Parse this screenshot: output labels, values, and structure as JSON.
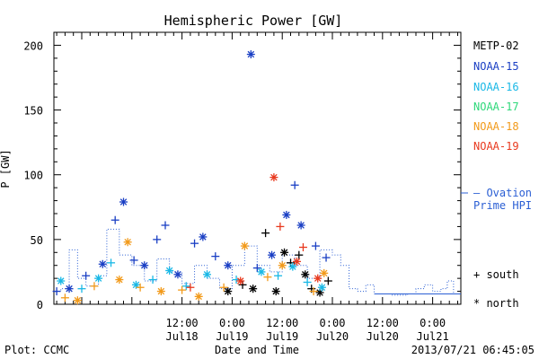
{
  "chart_data": {
    "type": "scatter",
    "title": "Hemispheric Power [GW]",
    "ylabel": "P [GW]",
    "xlabel": "Date and Time",
    "xlim": [
      "2013-07-17T05:20",
      "2013-07-21T06:45"
    ],
    "ylim": [
      0,
      210
    ],
    "y_ticks": [
      0,
      50,
      100,
      150,
      200
    ],
    "x_ticks": [
      {
        "time": "2013-07-18T12:00",
        "label1": "12:00",
        "label2": "Jul18"
      },
      {
        "time": "2013-07-19T00:00",
        "label1": "0:00",
        "label2": "Jul19"
      },
      {
        "time": "2013-07-19T12:00",
        "label1": "12:00",
        "label2": "Jul19"
      },
      {
        "time": "2013-07-20T00:00",
        "label1": "0:00",
        "label2": "Jul20"
      },
      {
        "time": "2013-07-20T12:00",
        "label1": "12:00",
        "label2": "Jul20"
      },
      {
        "time": "2013-07-21T00:00",
        "label1": "0:00",
        "label2": "Jul21"
      }
    ],
    "grid": false,
    "legend_position": "right",
    "series": [
      {
        "name": "METP-02",
        "color": "#000000",
        "points": [
          {
            "t": "2013-07-19T08:00",
            "v": 55,
            "m": "+"
          },
          {
            "t": "2013-07-19T10:30",
            "v": 10,
            "m": "*"
          },
          {
            "t": "2013-07-19T12:30",
            "v": 40,
            "m": "*"
          },
          {
            "t": "2013-07-19T14:00",
            "v": 32,
            "m": "+"
          },
          {
            "t": "2013-07-19T16:00",
            "v": 38,
            "m": "+"
          },
          {
            "t": "2013-07-19T17:30",
            "v": 23,
            "m": "*"
          },
          {
            "t": "2013-07-19T19:00",
            "v": 12,
            "m": "+"
          },
          {
            "t": "2013-07-19T21:00",
            "v": 9,
            "m": "*"
          },
          {
            "t": "2013-07-19T23:00",
            "v": 18,
            "m": "+"
          },
          {
            "t": "2013-07-18T23:00",
            "v": 10,
            "m": "*"
          },
          {
            "t": "2013-07-19T02:30",
            "v": 15,
            "m": "+"
          },
          {
            "t": "2013-07-19T05:00",
            "v": 12,
            "m": "*"
          }
        ]
      },
      {
        "name": "NOAA-15",
        "color": "#1a3fc4",
        "points": [
          {
            "t": "2013-07-17T06:00",
            "v": 10,
            "m": "+"
          },
          {
            "t": "2013-07-17T09:00",
            "v": 12,
            "m": "*"
          },
          {
            "t": "2013-07-17T13:00",
            "v": 22,
            "m": "+"
          },
          {
            "t": "2013-07-17T17:00",
            "v": 31,
            "m": "*"
          },
          {
            "t": "2013-07-17T20:00",
            "v": 65,
            "m": "+"
          },
          {
            "t": "2013-07-17T22:00",
            "v": 79,
            "m": "*"
          },
          {
            "t": "2013-07-18T00:30",
            "v": 34,
            "m": "+"
          },
          {
            "t": "2013-07-18T03:00",
            "v": 30,
            "m": "*"
          },
          {
            "t": "2013-07-18T06:00",
            "v": 50,
            "m": "+"
          },
          {
            "t": "2013-07-18T08:00",
            "v": 61,
            "m": "+"
          },
          {
            "t": "2013-07-18T11:00",
            "v": 23,
            "m": "*"
          },
          {
            "t": "2013-07-18T15:00",
            "v": 47,
            "m": "+"
          },
          {
            "t": "2013-07-18T17:00",
            "v": 52,
            "m": "*"
          },
          {
            "t": "2013-07-18T20:00",
            "v": 37,
            "m": "+"
          },
          {
            "t": "2013-07-18T23:00",
            "v": 30,
            "m": "*"
          },
          {
            "t": "2013-07-19T04:30",
            "v": 193,
            "m": "*"
          },
          {
            "t": "2013-07-19T06:00",
            "v": 28,
            "m": "+"
          },
          {
            "t": "2013-07-19T09:30",
            "v": 38,
            "m": "*"
          },
          {
            "t": "2013-07-19T13:00",
            "v": 69,
            "m": "*"
          },
          {
            "t": "2013-07-19T15:00",
            "v": 92,
            "m": "+"
          },
          {
            "t": "2013-07-19T16:30",
            "v": 61,
            "m": "*"
          },
          {
            "t": "2013-07-19T20:00",
            "v": 45,
            "m": "+"
          },
          {
            "t": "2013-07-19T22:30",
            "v": 36,
            "m": "+"
          }
        ]
      },
      {
        "name": "NOAA-16",
        "color": "#19b8e6",
        "points": [
          {
            "t": "2013-07-17T07:00",
            "v": 18,
            "m": "*"
          },
          {
            "t": "2013-07-17T12:00",
            "v": 12,
            "m": "+"
          },
          {
            "t": "2013-07-17T16:00",
            "v": 20,
            "m": "*"
          },
          {
            "t": "2013-07-17T19:00",
            "v": 32,
            "m": "+"
          },
          {
            "t": "2013-07-18T01:00",
            "v": 15,
            "m": "*"
          },
          {
            "t": "2013-07-18T05:00",
            "v": 19,
            "m": "+"
          },
          {
            "t": "2013-07-18T09:00",
            "v": 26,
            "m": "*"
          },
          {
            "t": "2013-07-18T13:00",
            "v": 14,
            "m": "+"
          },
          {
            "t": "2013-07-18T18:00",
            "v": 23,
            "m": "*"
          },
          {
            "t": "2013-07-19T01:00",
            "v": 19,
            "m": "+"
          },
          {
            "t": "2013-07-19T07:00",
            "v": 25,
            "m": "*"
          },
          {
            "t": "2013-07-19T11:00",
            "v": 22,
            "m": "+"
          },
          {
            "t": "2013-07-19T14:30",
            "v": 29,
            "m": "*"
          },
          {
            "t": "2013-07-19T18:00",
            "v": 17,
            "m": "+"
          },
          {
            "t": "2013-07-19T21:30",
            "v": 13,
            "m": "*"
          }
        ]
      },
      {
        "name": "NOAA-17",
        "color": "#2ed87a",
        "points": []
      },
      {
        "name": "NOAA-18",
        "color": "#f29a1a",
        "points": [
          {
            "t": "2013-07-17T08:00",
            "v": 5,
            "m": "+"
          },
          {
            "t": "2013-07-17T11:00",
            "v": 3,
            "m": "*"
          },
          {
            "t": "2013-07-17T15:00",
            "v": 14,
            "m": "+"
          },
          {
            "t": "2013-07-17T21:00",
            "v": 19,
            "m": "*"
          },
          {
            "t": "2013-07-17T23:00",
            "v": 48,
            "m": "*"
          },
          {
            "t": "2013-07-18T02:00",
            "v": 13,
            "m": "+"
          },
          {
            "t": "2013-07-18T07:00",
            "v": 10,
            "m": "*"
          },
          {
            "t": "2013-07-18T12:00",
            "v": 11,
            "m": "+"
          },
          {
            "t": "2013-07-18T16:00",
            "v": 6,
            "m": "*"
          },
          {
            "t": "2013-07-18T22:00",
            "v": 13,
            "m": "+"
          },
          {
            "t": "2013-07-19T03:00",
            "v": 45,
            "m": "*"
          },
          {
            "t": "2013-07-19T08:30",
            "v": 21,
            "m": "+"
          },
          {
            "t": "2013-07-19T12:00",
            "v": 30,
            "m": "*"
          },
          {
            "t": "2013-07-19T19:30",
            "v": 10,
            "m": "+"
          },
          {
            "t": "2013-07-19T22:00",
            "v": 24,
            "m": "*"
          }
        ]
      },
      {
        "name": "NOAA-19",
        "color": "#e8391e",
        "points": [
          {
            "t": "2013-07-18T14:00",
            "v": 13,
            "m": "+"
          },
          {
            "t": "2013-07-19T02:00",
            "v": 18,
            "m": "*"
          },
          {
            "t": "2013-07-19T10:00",
            "v": 98,
            "m": "*"
          },
          {
            "t": "2013-07-19T11:30",
            "v": 60,
            "m": "+"
          },
          {
            "t": "2013-07-19T15:30",
            "v": 33,
            "m": "*"
          },
          {
            "t": "2013-07-19T17:00",
            "v": 44,
            "m": "+"
          },
          {
            "t": "2013-07-19T20:30",
            "v": 20,
            "m": "*"
          }
        ]
      },
      {
        "name": "Ovation Prime HPI",
        "color": "#2b5fd4",
        "style": "dotted-step",
        "points": [
          {
            "t": "2013-07-17T05:20",
            "v": 10
          },
          {
            "t": "2013-07-17T07:00",
            "v": 12
          },
          {
            "t": "2013-07-17T09:00",
            "v": 42
          },
          {
            "t": "2013-07-17T11:00",
            "v": 20
          },
          {
            "t": "2013-07-17T13:00",
            "v": 14
          },
          {
            "t": "2013-07-17T16:00",
            "v": 22
          },
          {
            "t": "2013-07-17T18:00",
            "v": 58
          },
          {
            "t": "2013-07-17T21:00",
            "v": 38
          },
          {
            "t": "2013-07-18T00:00",
            "v": 30
          },
          {
            "t": "2013-07-18T03:00",
            "v": 18
          },
          {
            "t": "2013-07-18T06:00",
            "v": 35
          },
          {
            "t": "2013-07-18T09:00",
            "v": 25
          },
          {
            "t": "2013-07-18T12:00",
            "v": 16
          },
          {
            "t": "2013-07-18T15:00",
            "v": 30
          },
          {
            "t": "2013-07-18T18:00",
            "v": 20
          },
          {
            "t": "2013-07-18T21:00",
            "v": 12
          },
          {
            "t": "2013-07-19T00:00",
            "v": 30
          },
          {
            "t": "2013-07-19T03:00",
            "v": 45
          },
          {
            "t": "2013-07-19T06:00",
            "v": 30
          },
          {
            "t": "2013-07-19T09:00",
            "v": 25
          },
          {
            "t": "2013-07-19T12:00",
            "v": 38
          },
          {
            "t": "2013-07-19T15:00",
            "v": 30
          },
          {
            "t": "2013-07-19T18:00",
            "v": 20
          },
          {
            "t": "2013-07-19T21:00",
            "v": 42
          },
          {
            "t": "2013-07-20T00:00",
            "v": 38
          },
          {
            "t": "2013-07-20T02:00",
            "v": 30
          },
          {
            "t": "2013-07-20T04:00",
            "v": 12
          },
          {
            "t": "2013-07-20T06:00",
            "v": 10
          },
          {
            "t": "2013-07-20T08:00",
            "v": 15
          },
          {
            "t": "2013-07-20T10:00",
            "v": 8
          },
          {
            "t": "2013-07-20T14:00",
            "v": 7
          },
          {
            "t": "2013-07-20T18:00",
            "v": 8
          },
          {
            "t": "2013-07-20T20:00",
            "v": 12
          },
          {
            "t": "2013-07-20T22:00",
            "v": 15
          },
          {
            "t": "2013-07-21T00:00",
            "v": 10
          },
          {
            "t": "2013-07-21T02:00",
            "v": 12
          },
          {
            "t": "2013-07-21T03:30",
            "v": 18
          },
          {
            "t": "2013-07-21T05:00",
            "v": 8
          },
          {
            "t": "2013-07-21T06:45",
            "v": 8
          }
        ]
      }
    ],
    "legend": {
      "entries": [
        "METP-02",
        "NOAA-15",
        "NOAA-16",
        "NOAA-17",
        "NOAA-18",
        "NOAA-19"
      ],
      "ovation_line1": "– Ovation",
      "ovation_line2": "Prime HPI",
      "south_label": "+ south",
      "north_label": "* north"
    }
  },
  "footer": {
    "plot_credit": "Plot: CCMC",
    "timestamp": "2013/07/21 06:45:05"
  }
}
